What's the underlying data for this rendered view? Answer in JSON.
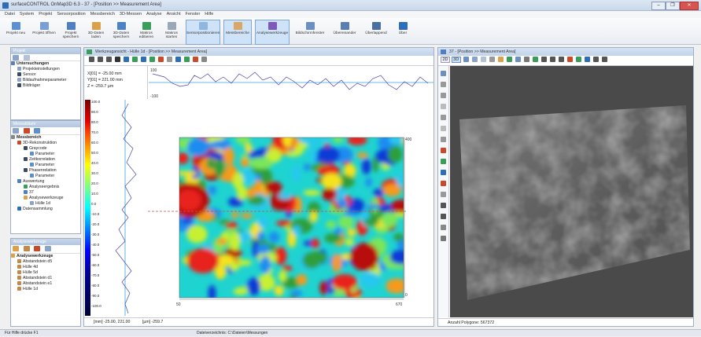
{
  "window": {
    "title": "surfaceCONTROL OnMap3D 6.3 - 37 - [Position >> Measurement Area]",
    "controls": [
      "–",
      "❐",
      "✕"
    ]
  },
  "menu": [
    "Datei",
    "System",
    "Projekt",
    "Sensorposition",
    "Messbereich",
    "3D-Messen",
    "Analyse",
    "Ansicht",
    "Fenster",
    "Hilfe"
  ],
  "ribbon": [
    {
      "label": "Projekt neu",
      "color": "#5b8fd0"
    },
    {
      "label": "Projekt öffnen",
      "color": "#7a9fd4"
    },
    {
      "label": "Projekt speichern",
      "color": "#4f7fc0"
    },
    {
      "label": "3D-Daten laden",
      "color": "#d9a24a"
    },
    {
      "label": "3D-Daten speichern",
      "color": "#4d83c4"
    },
    {
      "label": "Makros editieren",
      "color": "#3a9d5a"
    },
    {
      "label": "Makros starten",
      "color": "#9aa7b6"
    },
    {
      "label": "Sensorpositionieren",
      "color": "#8eb6e0"
    },
    {
      "label": "Messbereiche",
      "color": "#d8a86a"
    },
    {
      "label": "Analysewerkzeuge",
      "color": "#7e59b8"
    },
    {
      "label": "Bildschirmfenster",
      "color": "#6a8fc0"
    },
    {
      "label": "Übereinander",
      "color": "#5a7fb0"
    },
    {
      "label": "Überlappend",
      "color": "#4b6f9e"
    },
    {
      "label": "Über",
      "color": "#2e6db8"
    }
  ],
  "project_panel": {
    "title": "Projekt",
    "items": [
      {
        "label": "Untersuchungen",
        "level": 0,
        "color": "#5c7fb8"
      },
      {
        "label": "Projekteinstellungen",
        "level": 1,
        "color": "#8aa3c7"
      },
      {
        "label": "Sensor",
        "level": 1,
        "color": "#3b4a5e"
      },
      {
        "label": "Bildaufnahmeparameter",
        "level": 1,
        "color": "#8aa3c7"
      },
      {
        "label": "Bildträger",
        "level": 1,
        "color": "#3b4a5e"
      }
    ]
  },
  "measure_panel": {
    "title": "Messabläufe",
    "items": [
      {
        "label": "Messbereich",
        "level": 0,
        "color": "#888"
      },
      {
        "label": "3D-Rekonstruktion",
        "level": 1,
        "color": "#c84a2a"
      },
      {
        "label": "Graycode",
        "level": 2,
        "color": "#3b4a5e"
      },
      {
        "label": "Parameter",
        "level": 3,
        "color": "#5b8fd0"
      },
      {
        "label": "Zeitkorrelation",
        "level": 2,
        "color": "#3b4a5e"
      },
      {
        "label": "Parameter",
        "level": 3,
        "color": "#5b8fd0"
      },
      {
        "label": "Phasenrelation",
        "level": 2,
        "color": "#3b4a5e"
      },
      {
        "label": "Parameter",
        "level": 3,
        "color": "#5b8fd0"
      },
      {
        "label": "Auswertung",
        "level": 1,
        "color": "#4f7fc0"
      },
      {
        "label": "Analyseergebnis",
        "level": 2,
        "color": "#3a9d5a"
      },
      {
        "label": "37",
        "level": 2,
        "color": "#4f7fc0"
      },
      {
        "label": "Analysewerkzeuge",
        "level": 2,
        "color": "#d9a24a"
      },
      {
        "label": "Hülle 1d",
        "level": 3,
        "color": "#8aa3c7"
      },
      {
        "label": "Datensammlung",
        "level": 1,
        "color": "#2e6db8"
      }
    ]
  },
  "tools_panel": {
    "title": "Analysewerkzeuge",
    "items": [
      {
        "label": "Analysewerkzeuge",
        "level": 0,
        "color": "#d9a24a"
      },
      {
        "label": "Abstandstein d5",
        "level": 1,
        "color": "#c08a4a"
      },
      {
        "label": "Hülle 4d",
        "level": 1,
        "color": "#c08a4a"
      },
      {
        "label": "Hülle 5d",
        "level": 1,
        "color": "#c08a4a"
      },
      {
        "label": "Abstandstein d1",
        "level": 1,
        "color": "#c08a4a"
      },
      {
        "label": "Abstandstein e1",
        "level": 1,
        "color": "#c08a4a"
      },
      {
        "label": "Hülle 1d",
        "level": 1,
        "color": "#c08a4a"
      }
    ]
  },
  "analysis_window": {
    "title": "Werkzeugansicht - Hülle 1d - [Position >> Measurement Area]",
    "readout": {
      "x": "X[01] = -25.00 mm",
      "y": "Y[01] = 221.00 mm",
      "z": "Z = -259.7 µm"
    },
    "top_profile_labels": {
      "top": "100",
      "bottom": "-100"
    },
    "color_scale": [
      "100.0",
      "90.0",
      "80.0",
      "70.0",
      "60.0",
      "50.0",
      "40.0",
      "30.0",
      "20.0",
      "10.0",
      "0.0",
      "-10.0",
      "-20.0",
      "-30.0",
      "-40.0",
      "-50.0",
      "-60.0",
      "-70.0",
      "-80.0",
      "-90.0",
      "-100.0"
    ],
    "scale_colors": [
      "#7a0000",
      "#b30000",
      "#e60000",
      "#ff4000",
      "#ff8000",
      "#ffbf00",
      "#ffff00",
      "#bfff40",
      "#80ff80",
      "#40ffbf",
      "#00ffff",
      "#00bfff",
      "#0080ff",
      "#0040ff",
      "#0000ff",
      "#0000cc",
      "#000099",
      "#000080",
      "#000066",
      "#00004d",
      "#000033"
    ],
    "map_axis": {
      "x_left": "50",
      "x_right": "670",
      "y_top": "400",
      "y_bottom": "0"
    },
    "status_left": "[mm] -25.00, 221.00",
    "status_right": "[µm] -259.7"
  },
  "view3d_window": {
    "title": "37 - [Position >> Measurement Area]",
    "status": "Anzahl Polygone: 567372",
    "tab_2d": "2D",
    "tab_3d": "3D"
  },
  "statusbar": {
    "left": "Für Hilfe drücke F1",
    "center": "Dateiverzeichnis: C:\\Dateien\\Messungen"
  }
}
